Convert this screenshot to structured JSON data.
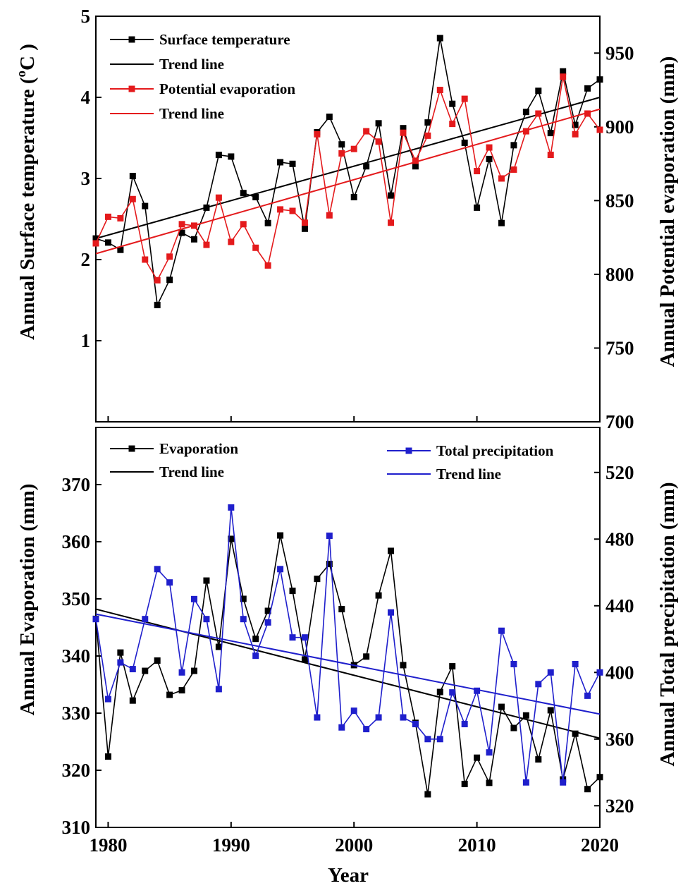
{
  "chart_data": [
    {
      "type": "line",
      "panel": "top",
      "x": [
        1979,
        1980,
        1981,
        1982,
        1983,
        1984,
        1985,
        1986,
        1987,
        1988,
        1989,
        1990,
        1991,
        1992,
        1993,
        1994,
        1995,
        1996,
        1997,
        1998,
        1999,
        2000,
        2001,
        2002,
        2003,
        2004,
        2005,
        2006,
        2007,
        2008,
        2009,
        2010,
        2011,
        2012,
        2013,
        2014,
        2015,
        2016,
        2017,
        2018,
        2019,
        2020
      ],
      "xlim": [
        1979,
        2020
      ],
      "xticks": [
        "1980",
        "1990",
        "2000",
        "2010",
        "2020"
      ],
      "xlabel": "Year",
      "left_axis": {
        "label": "Annual Surface temperature ( °C )",
        "label_main": "Annual Surface temperature (",
        "label_o": "o",
        "label_c": "C )",
        "ylim": [
          0,
          5
        ],
        "ticks": [
          "1",
          "2",
          "3",
          "4",
          "5"
        ]
      },
      "right_axis": {
        "label": "Annual Potential evaporation (mm)",
        "ylim": [
          700,
          975
        ],
        "ticks": [
          "700",
          "750",
          "800",
          "850",
          "900",
          "950"
        ]
      },
      "series": [
        {
          "name": "Surface temperature",
          "axis": "left",
          "color": "#000000",
          "marker": "square",
          "values": [
            2.26,
            2.21,
            2.12,
            3.03,
            2.66,
            1.44,
            1.75,
            2.33,
            2.25,
            2.64,
            3.29,
            3.27,
            2.82,
            2.77,
            2.45,
            3.2,
            3.18,
            2.38,
            3.57,
            3.76,
            3.42,
            2.77,
            3.15,
            3.68,
            2.79,
            3.62,
            3.15,
            3.69,
            4.73,
            3.92,
            3.44,
            2.64,
            3.24,
            2.45,
            3.41,
            3.82,
            4.08,
            3.56,
            4.32,
            3.66,
            4.11,
            4.22
          ]
        },
        {
          "name": "Trend line",
          "axis": "left",
          "color": "#000000",
          "trend": [
            2.26,
            4.0
          ]
        },
        {
          "name": "Potential evaporation",
          "axis": "right",
          "color": "#e41a1c",
          "marker": "square",
          "values": [
            821,
            839,
            838,
            851,
            810,
            796,
            812,
            834,
            833,
            820,
            852,
            822,
            834,
            818,
            806,
            844,
            843,
            835,
            895,
            840,
            882,
            885,
            897,
            890,
            835,
            896,
            877,
            894,
            925,
            902,
            919,
            870,
            886,
            865,
            871,
            897,
            909,
            881,
            934,
            895,
            909,
            898
          ]
        },
        {
          "name": "Trend line",
          "axis": "right",
          "color": "#e41a1c",
          "trend": [
            814,
            912
          ]
        }
      ]
    },
    {
      "type": "line",
      "panel": "bottom",
      "x": [
        1979,
        1980,
        1981,
        1982,
        1983,
        1984,
        1985,
        1986,
        1987,
        1988,
        1989,
        1990,
        1991,
        1992,
        1993,
        1994,
        1995,
        1996,
        1997,
        1998,
        1999,
        2000,
        2001,
        2002,
        2003,
        2004,
        2005,
        2006,
        2007,
        2008,
        2009,
        2010,
        2011,
        2012,
        2013,
        2014,
        2015,
        2016,
        2017,
        2018,
        2019,
        2020
      ],
      "xlim": [
        1979,
        2020
      ],
      "xticks": [
        "1980",
        "1990",
        "2000",
        "2010",
        "2020"
      ],
      "xlabel": "Year",
      "left_axis": {
        "label": "Annual Evaporation (mm)",
        "ylim": [
          310,
          380
        ],
        "ticks": [
          "310",
          "320",
          "330",
          "340",
          "350",
          "360",
          "370"
        ]
      },
      "right_axis": {
        "label": "Annual Total precipitation (mm)",
        "ylim": [
          307,
          547
        ],
        "ticks": [
          "320",
          "360",
          "400",
          "440",
          "480",
          "520"
        ]
      },
      "series": [
        {
          "name": "Evaporation",
          "axis": "left",
          "color": "#000000",
          "marker": "square",
          "values": [
            346.5,
            322.4,
            340.6,
            332.2,
            337.4,
            339.2,
            333.2,
            334.0,
            337.4,
            353.2,
            341.6,
            360.5,
            350.0,
            343.0,
            347.9,
            361.1,
            351.4,
            339.4,
            353.5,
            356.1,
            348.2,
            338.4,
            339.9,
            350.6,
            358.4,
            338.4,
            328.3,
            315.8,
            333.7,
            338.2,
            317.6,
            322.2,
            317.8,
            331.1,
            327.4,
            329.6,
            321.9,
            330.5,
            318.4,
            326.4,
            316.7,
            318.8
          ]
        },
        {
          "name": "Trend line",
          "axis": "left",
          "color": "#000000",
          "trend": [
            348.2,
            325.6
          ]
        },
        {
          "name": "Total precipitation",
          "axis": "right",
          "color": "#1f1fcc",
          "marker": "square",
          "values": [
            432,
            384,
            406,
            402,
            432,
            462,
            454,
            400,
            444,
            432,
            390,
            499,
            432,
            410,
            430,
            462,
            421,
            421,
            373,
            482,
            367,
            377,
            366,
            373,
            436,
            373,
            369,
            360,
            360,
            388,
            369,
            389,
            352,
            425,
            405,
            334,
            393,
            400,
            334,
            405,
            386,
            400
          ]
        },
        {
          "name": "Trend line",
          "axis": "right",
          "color": "#1f1fcc",
          "trend": [
            435,
            375
          ]
        }
      ]
    }
  ],
  "legend_top": [
    {
      "label": "Surface temperature",
      "color": "#000000",
      "marker": true
    },
    {
      "label": "Trend line",
      "color": "#000000",
      "marker": false
    },
    {
      "label": "Potential evaporation",
      "color": "#e41a1c",
      "marker": true
    },
    {
      "label": "Trend line",
      "color": "#e41a1c",
      "marker": false
    }
  ],
  "legend_bottom_left": [
    {
      "label": "Evaporation",
      "color": "#000000",
      "marker": true
    },
    {
      "label": "Trend line",
      "color": "#000000",
      "marker": false
    }
  ],
  "legend_bottom_right": [
    {
      "label": "Total precipitation",
      "color": "#1f1fcc",
      "marker": true
    },
    {
      "label": "Trend line",
      "color": "#1f1fcc",
      "marker": false
    }
  ]
}
